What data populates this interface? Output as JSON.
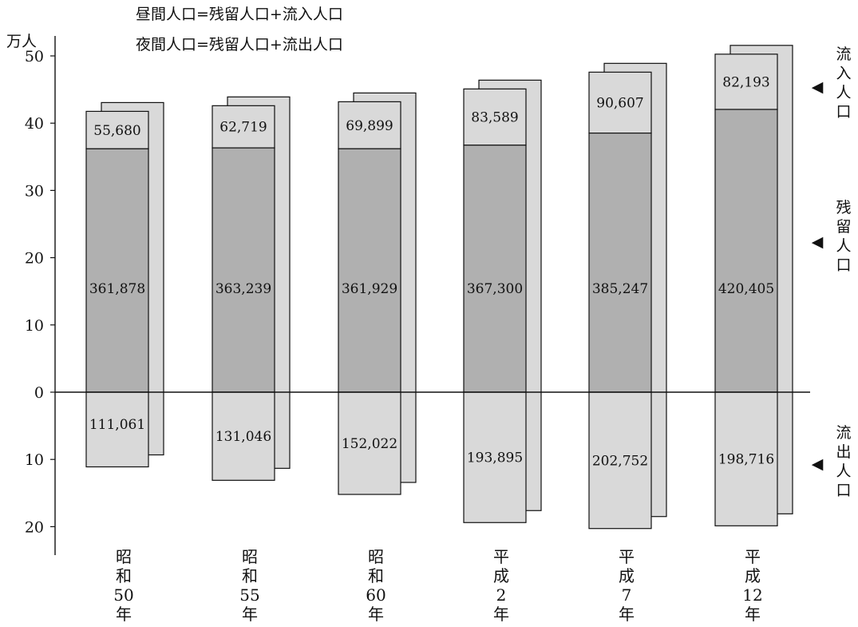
{
  "chart_data": {
    "type": "bar",
    "notes": [
      "昼間人口=残留人口+流入人口",
      "夜間人口=残留人口+流出人口"
    ],
    "ylabel": "万人",
    "yticks_upper": [
      "50",
      "40",
      "30",
      "20",
      "10",
      "0"
    ],
    "yticks_lower": [
      "10",
      "20"
    ],
    "ylim": [
      -20,
      50
    ],
    "categories": [
      [
        "昭",
        "和",
        "50",
        "年"
      ],
      [
        "昭",
        "和",
        "55",
        "年"
      ],
      [
        "昭",
        "和",
        "60",
        "年"
      ],
      [
        "平",
        "成",
        "2",
        "年"
      ],
      [
        "平",
        "成",
        "7",
        "年"
      ],
      [
        "平",
        "成",
        "12",
        "年"
      ]
    ],
    "series": [
      {
        "name": "残留人口",
        "label_chars": [
          "残",
          "留",
          "人",
          "口"
        ],
        "values": [
          361878,
          363239,
          361929,
          367300,
          385247,
          420405
        ]
      },
      {
        "name": "流入人口",
        "label_chars": [
          "流",
          "入",
          "人",
          "口"
        ],
        "values": [
          55680,
          62719,
          69899,
          83589,
          90607,
          82193
        ]
      },
      {
        "name": "流出人口",
        "label_chars": [
          "流",
          "出",
          "人",
          "口"
        ],
        "values": [
          111061,
          131046,
          152022,
          193895,
          202752,
          198716
        ]
      }
    ],
    "value_labels": {
      "残留人口": [
        "361,878",
        "363,239",
        "361,929",
        "367,300",
        "385,247",
        "420,405"
      ],
      "流入人口": [
        "55,680",
        "62,719",
        "69,899",
        "83,589",
        "90,607",
        "82,193"
      ],
      "流出人口": [
        "111,061",
        "131,046",
        "152,022",
        "193,895",
        "202,752",
        "198,716"
      ]
    },
    "colors": {
      "residual": "#b0b0b0",
      "inflow": "#d9d9d9",
      "outflow": "#d9d9d9",
      "shadow": "#d9d9d9",
      "stroke": "#111111"
    },
    "arrow_glyph": "◀"
  }
}
